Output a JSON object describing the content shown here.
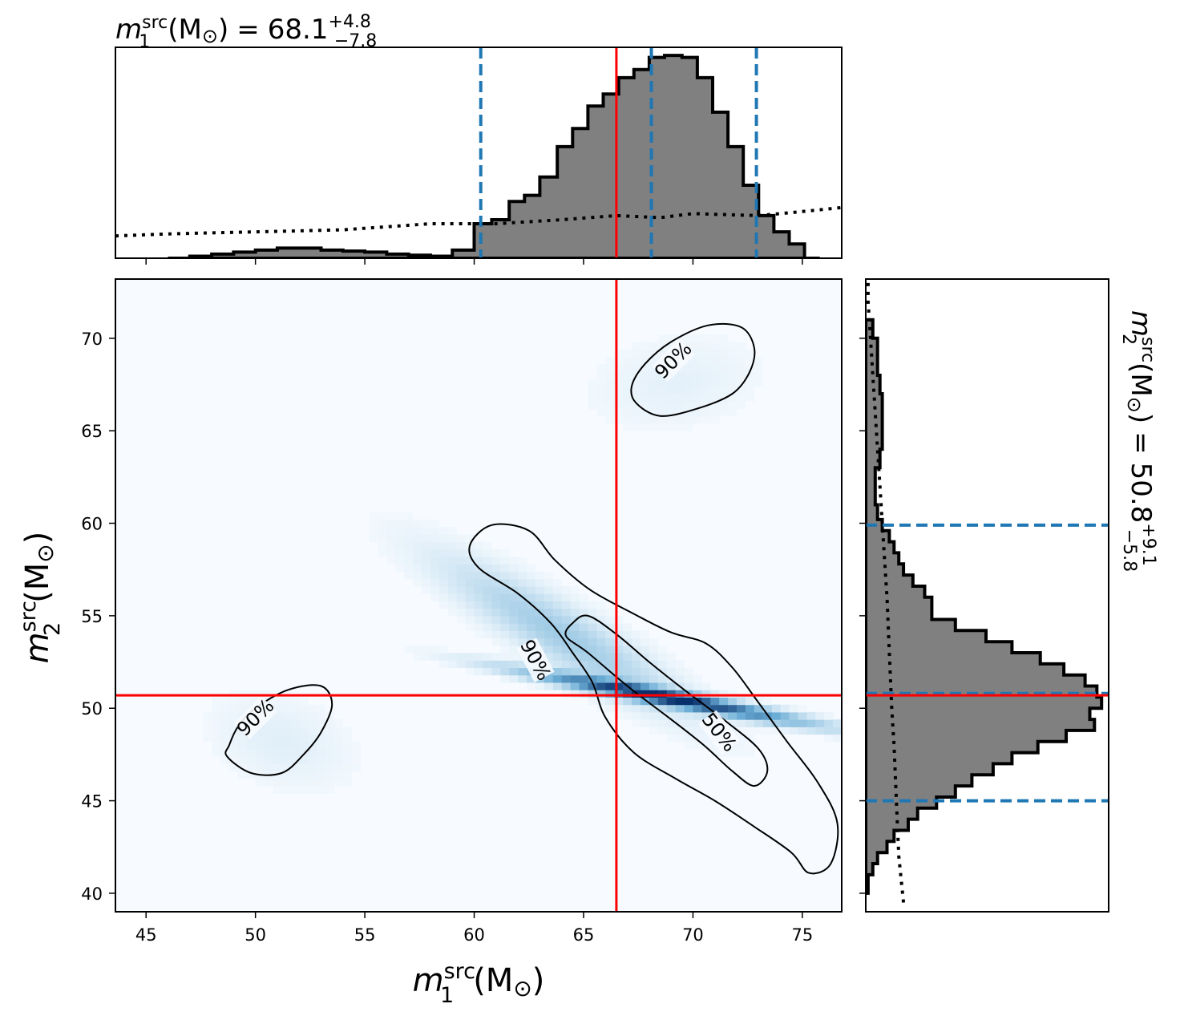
{
  "chart_data": [
    {
      "type": "heatmap",
      "panel": "joint",
      "xlabel": {
        "base": "m",
        "sup": "src",
        "sub": "1",
        "unit": "(M",
        "sun": "⊙",
        "close": ")"
      },
      "ylabel": {
        "base": "m",
        "sup": "src",
        "sub": "2",
        "unit": "(M",
        "sun": "⊙",
        "close": ")"
      },
      "xlim": [
        43.6,
        76.8
      ],
      "ylim": [
        39.0,
        73.2
      ],
      "xticks": [
        "45",
        "50",
        "55",
        "60",
        "65",
        "70",
        "75"
      ],
      "yticks": [
        "40",
        "45",
        "50",
        "55",
        "60",
        "65",
        "70"
      ],
      "injection": {
        "x": 66.5,
        "y": 50.7,
        "color": "#ff0000"
      },
      "colormap": [
        "#f7fbff",
        "#08306b"
      ],
      "density_modes": [
        {
          "x": 68.8,
          "y": 50.6,
          "sx": 4.0,
          "sy": 0.9,
          "rho": -0.95,
          "w": 1.0
        },
        {
          "x": 64.0,
          "y": 54.0,
          "sx": 3.5,
          "sy": 2.6,
          "rho": -0.9,
          "w": 0.25
        },
        {
          "x": 51.2,
          "y": 48.2,
          "sx": 2.0,
          "sy": 1.6,
          "rho": -0.3,
          "w": 0.05
        },
        {
          "x": 69.2,
          "y": 67.6,
          "sx": 2.4,
          "sy": 1.6,
          "rho": 0.2,
          "w": 0.04
        }
      ],
      "contours": [
        {
          "level": "50%",
          "label": "50%",
          "points": [
            [
              64.5,
              54.6
            ],
            [
              64.2,
              53.9
            ],
            [
              65.2,
              53.0
            ],
            [
              67.0,
              51.2
            ],
            [
              69.0,
              49.4
            ],
            [
              70.5,
              48.0
            ],
            [
              71.8,
              46.6
            ],
            [
              72.8,
              45.8
            ],
            [
              73.4,
              46.6
            ],
            [
              73.0,
              47.8
            ],
            [
              71.5,
              49.3
            ],
            [
              69.6,
              51.0
            ],
            [
              68.0,
              52.5
            ],
            [
              66.5,
              54.0
            ],
            [
              65.2,
              55.0
            ]
          ]
        },
        {
          "level": "90%",
          "label": "90%",
          "points": [
            [
              60.8,
              59.9
            ],
            [
              59.8,
              58.8
            ],
            [
              60.2,
              57.6
            ],
            [
              62.0,
              56.2
            ],
            [
              63.5,
              54.6
            ],
            [
              64.5,
              53.0
            ],
            [
              65.4,
              51.4
            ],
            [
              66.0,
              49.5
            ],
            [
              67.3,
              47.6
            ],
            [
              69.2,
              46.2
            ],
            [
              71.0,
              45.0
            ],
            [
              72.8,
              43.6
            ],
            [
              74.5,
              42.2
            ],
            [
              75.3,
              41.1
            ],
            [
              76.3,
              41.6
            ],
            [
              76.6,
              43.8
            ],
            [
              75.7,
              46.0
            ],
            [
              74.3,
              48.2
            ],
            [
              73.0,
              50.3
            ],
            [
              71.8,
              52.2
            ],
            [
              70.6,
              53.5
            ],
            [
              69.0,
              54.1
            ],
            [
              67.3,
              55.1
            ],
            [
              65.3,
              56.4
            ],
            [
              63.7,
              58.0
            ],
            [
              62.5,
              59.6
            ]
          ]
        },
        {
          "level": "90%",
          "label": "90%",
          "points": [
            [
              48.7,
              47.4
            ],
            [
              49.8,
              46.5
            ],
            [
              51.2,
              46.5
            ],
            [
              52.2,
              47.5
            ],
            [
              53.0,
              48.7
            ],
            [
              53.5,
              50.2
            ],
            [
              53.0,
              51.2
            ],
            [
              51.5,
              51.0
            ],
            [
              50.0,
              50.0
            ],
            [
              49.2,
              49.0
            ],
            [
              48.8,
              48.0
            ]
          ]
        },
        {
          "level": "90%",
          "label": "90%",
          "points": [
            [
              67.4,
              66.5
            ],
            [
              68.5,
              65.8
            ],
            [
              70.2,
              66.2
            ],
            [
              71.8,
              67.0
            ],
            [
              72.6,
              68.2
            ],
            [
              72.8,
              69.5
            ],
            [
              72.2,
              70.6
            ],
            [
              70.7,
              70.7
            ],
            [
              69.0,
              69.8
            ],
            [
              67.8,
              68.6
            ],
            [
              67.2,
              67.4
            ]
          ]
        }
      ],
      "contour_labels": [
        {
          "text": "90%",
          "x": 62.8,
          "y": 52.6,
          "angle": 62
        },
        {
          "text": "50%",
          "x": 71.2,
          "y": 48.7,
          "angle": 52
        },
        {
          "text": "90%",
          "x": 50.0,
          "y": 49.5,
          "angle": -45
        },
        {
          "text": "90%",
          "x": 69.1,
          "y": 68.8,
          "angle": -45
        }
      ]
    },
    {
      "type": "histogram",
      "panel": "marginal-x",
      "title": {
        "base": "m",
        "sup": "src",
        "sub": "1",
        "unit": "(M",
        "sun": "⊙",
        "close": ")",
        "equals": "=",
        "value": "68.1",
        "plus": "+4.8",
        "minus": "−7.8"
      },
      "xlim": [
        43.6,
        76.8
      ],
      "bin_edges": [
        46.0,
        47.0,
        48.0,
        49.0,
        50.0,
        51.0,
        52.0,
        53.0,
        54.0,
        55.0,
        56.0,
        57.0,
        58.0,
        59.0,
        60.0,
        60.8,
        61.6,
        62.3,
        63.0,
        63.8,
        64.5,
        65.2,
        65.9,
        66.6,
        67.3,
        68.0,
        68.7,
        69.5,
        70.2,
        70.9,
        71.6,
        72.3,
        73.0,
        73.7,
        74.4,
        75.1,
        75.8
      ],
      "values": [
        0.0,
        0.01,
        0.02,
        0.03,
        0.04,
        0.05,
        0.05,
        0.04,
        0.035,
        0.03,
        0.02,
        0.015,
        0.01,
        0.04,
        0.17,
        0.19,
        0.28,
        0.31,
        0.4,
        0.55,
        0.64,
        0.75,
        0.81,
        0.89,
        0.93,
        0.99,
        1.0,
        0.99,
        0.89,
        0.72,
        0.55,
        0.36,
        0.21,
        0.13,
        0.07,
        0.0
      ],
      "prior": [
        [
          43.6,
          0.11
        ],
        [
          46.0,
          0.12
        ],
        [
          50.0,
          0.13
        ],
        [
          54.0,
          0.14
        ],
        [
          58.0,
          0.17
        ],
        [
          61.0,
          0.17
        ],
        [
          64.0,
          0.19
        ],
        [
          66.5,
          0.21
        ],
        [
          68.5,
          0.2
        ],
        [
          70.0,
          0.22
        ],
        [
          73.0,
          0.21
        ],
        [
          75.0,
          0.23
        ],
        [
          76.8,
          0.25
        ]
      ],
      "ylim": [
        0,
        1.04
      ],
      "median": 68.1,
      "interval": [
        60.3,
        72.9
      ],
      "injection": 66.5
    },
    {
      "type": "histogram",
      "panel": "marginal-y",
      "ylabel": {
        "base": "m",
        "sup": "src",
        "sub": "2",
        "unit": "(M",
        "sun": "⊙",
        "close": ")",
        "equals": "=",
        "value": "50.8",
        "plus": "+9.1",
        "minus": "−5.8"
      },
      "ylim": [
        39.0,
        73.2
      ],
      "bin_edges": [
        40.0,
        41.0,
        41.6,
        42.2,
        42.8,
        43.4,
        44.0,
        44.6,
        45.2,
        45.8,
        46.4,
        47.0,
        47.6,
        48.2,
        48.8,
        49.4,
        50.0,
        50.6,
        51.2,
        51.8,
        52.4,
        53.0,
        53.6,
        54.2,
        54.8,
        55.4,
        56.0,
        56.6,
        57.2,
        57.8,
        58.4,
        59.0,
        59.6,
        60.2,
        61.0,
        62.0,
        63.0,
        64.0,
        65.0,
        66.0,
        67.0,
        68.0,
        69.0,
        70.0,
        71.0
      ],
      "values": [
        0.01,
        0.03,
        0.05,
        0.09,
        0.12,
        0.18,
        0.22,
        0.3,
        0.38,
        0.45,
        0.54,
        0.62,
        0.73,
        0.85,
        0.97,
        0.95,
        1.0,
        0.98,
        0.93,
        0.84,
        0.74,
        0.62,
        0.51,
        0.38,
        0.28,
        0.28,
        0.25,
        0.2,
        0.16,
        0.14,
        0.12,
        0.1,
        0.07,
        0.05,
        0.04,
        0.04,
        0.06,
        0.07,
        0.07,
        0.07,
        0.06,
        0.05,
        0.05,
        0.03
      ],
      "prior": [
        [
          39.5,
          0.16
        ],
        [
          42.0,
          0.14
        ],
        [
          45.0,
          0.13
        ],
        [
          48.0,
          0.12
        ],
        [
          50.0,
          0.11
        ],
        [
          53.0,
          0.1
        ],
        [
          56.0,
          0.09
        ],
        [
          58.0,
          0.08
        ],
        [
          60.0,
          0.07
        ],
        [
          62.0,
          0.06
        ],
        [
          64.0,
          0.05
        ],
        [
          66.0,
          0.04
        ],
        [
          68.0,
          0.03
        ],
        [
          70.0,
          0.02
        ],
        [
          72.0,
          0.01
        ],
        [
          73.2,
          0.01
        ]
      ],
      "xlim": [
        0,
        1.03
      ],
      "median": 50.8,
      "interval": [
        45.0,
        59.9
      ],
      "injection": 50.7
    }
  ]
}
